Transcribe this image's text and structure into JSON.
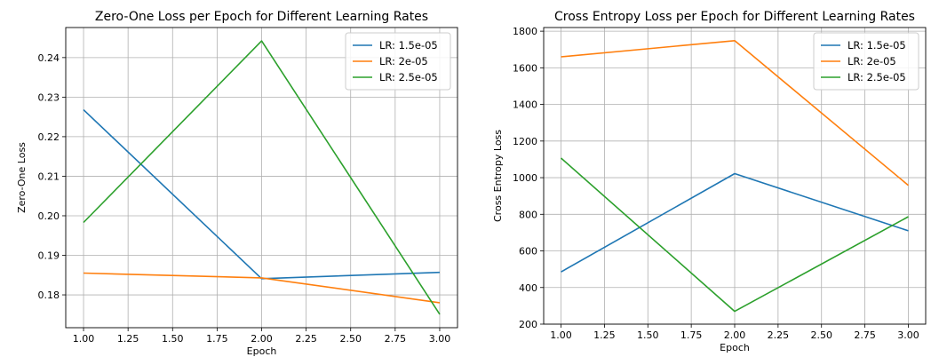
{
  "chart_data": [
    {
      "type": "line",
      "title": "Zero-One Loss per Epoch for Different Learning Rates",
      "xlabel": "Epoch",
      "ylabel": "Zero-One Loss",
      "x": [
        1.0,
        2.0,
        3.0
      ],
      "xlim": [
        0.9,
        3.1
      ],
      "ylim": [
        0.1717,
        0.2476
      ],
      "xticks": [
        "1.00",
        "1.25",
        "1.50",
        "1.75",
        "2.00",
        "2.25",
        "2.50",
        "2.75",
        "3.00"
      ],
      "yticks": [
        "0.18",
        "0.19",
        "0.20",
        "0.21",
        "0.22",
        "0.23",
        "0.24"
      ],
      "grid": true,
      "legend": "top-right",
      "series": [
        {
          "name": "LR: 1.5e-05",
          "color": "#1f77b4",
          "values": [
            0.2268,
            0.1841,
            0.1857
          ]
        },
        {
          "name": "LR: 2e-05",
          "color": "#ff7f0e",
          "values": [
            0.1855,
            0.1843,
            0.178
          ]
        },
        {
          "name": "LR: 2.5e-05",
          "color": "#2ca02c",
          "values": [
            0.1983,
            0.2442,
            0.1751
          ]
        }
      ]
    },
    {
      "type": "line",
      "title": "Cross Entropy Loss per Epoch for Different Learning Rates",
      "xlabel": "Epoch",
      "ylabel": "Cross Entropy Loss",
      "x": [
        1.0,
        2.0,
        3.0
      ],
      "xlim": [
        0.9,
        3.1
      ],
      "ylim": [
        200,
        1820
      ],
      "xticks": [
        "1.00",
        "1.25",
        "1.50",
        "1.75",
        "2.00",
        "2.25",
        "2.50",
        "2.75",
        "3.00"
      ],
      "yticks": [
        "200",
        "400",
        "600",
        "800",
        "1000",
        "1200",
        "1400",
        "1600",
        "1800"
      ],
      "grid": true,
      "legend": "top-right",
      "series": [
        {
          "name": "LR: 1.5e-05",
          "color": "#1f77b4",
          "values": [
            485,
            1022,
            710
          ]
        },
        {
          "name": "LR: 2e-05",
          "color": "#ff7f0e",
          "values": [
            1660,
            1748,
            958
          ]
        },
        {
          "name": "LR: 2.5e-05",
          "color": "#2ca02c",
          "values": [
            1107,
            270,
            787
          ]
        }
      ]
    }
  ]
}
